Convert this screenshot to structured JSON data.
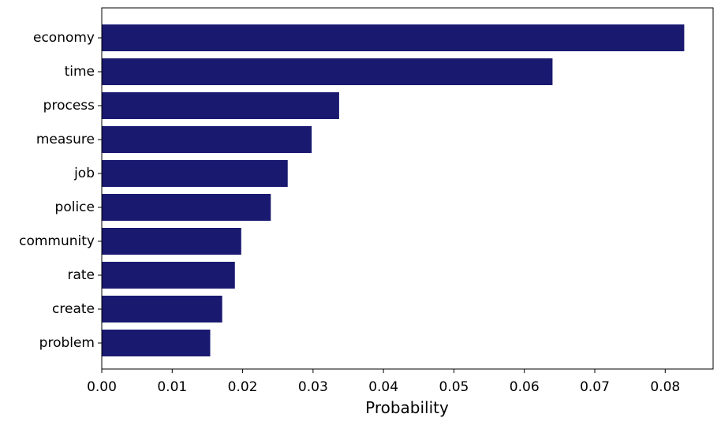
{
  "chart_data": {
    "type": "bar",
    "orientation": "horizontal",
    "categories": [
      "economy",
      "time",
      "process",
      "measure",
      "job",
      "police",
      "community",
      "rate",
      "create",
      "problem"
    ],
    "values": [
      0.0827,
      0.064,
      0.0337,
      0.0298,
      0.0264,
      0.024,
      0.0198,
      0.0189,
      0.0171,
      0.0154
    ],
    "title": "",
    "xlabel": "Probability",
    "ylabel": "",
    "xlim": [
      0,
      0.0868
    ],
    "xticks": [
      "0.00",
      "0.01",
      "0.02",
      "0.03",
      "0.04",
      "0.05",
      "0.06",
      "0.07",
      "0.08"
    ],
    "bar_color": "#191970",
    "grid": false,
    "legend": "none"
  }
}
